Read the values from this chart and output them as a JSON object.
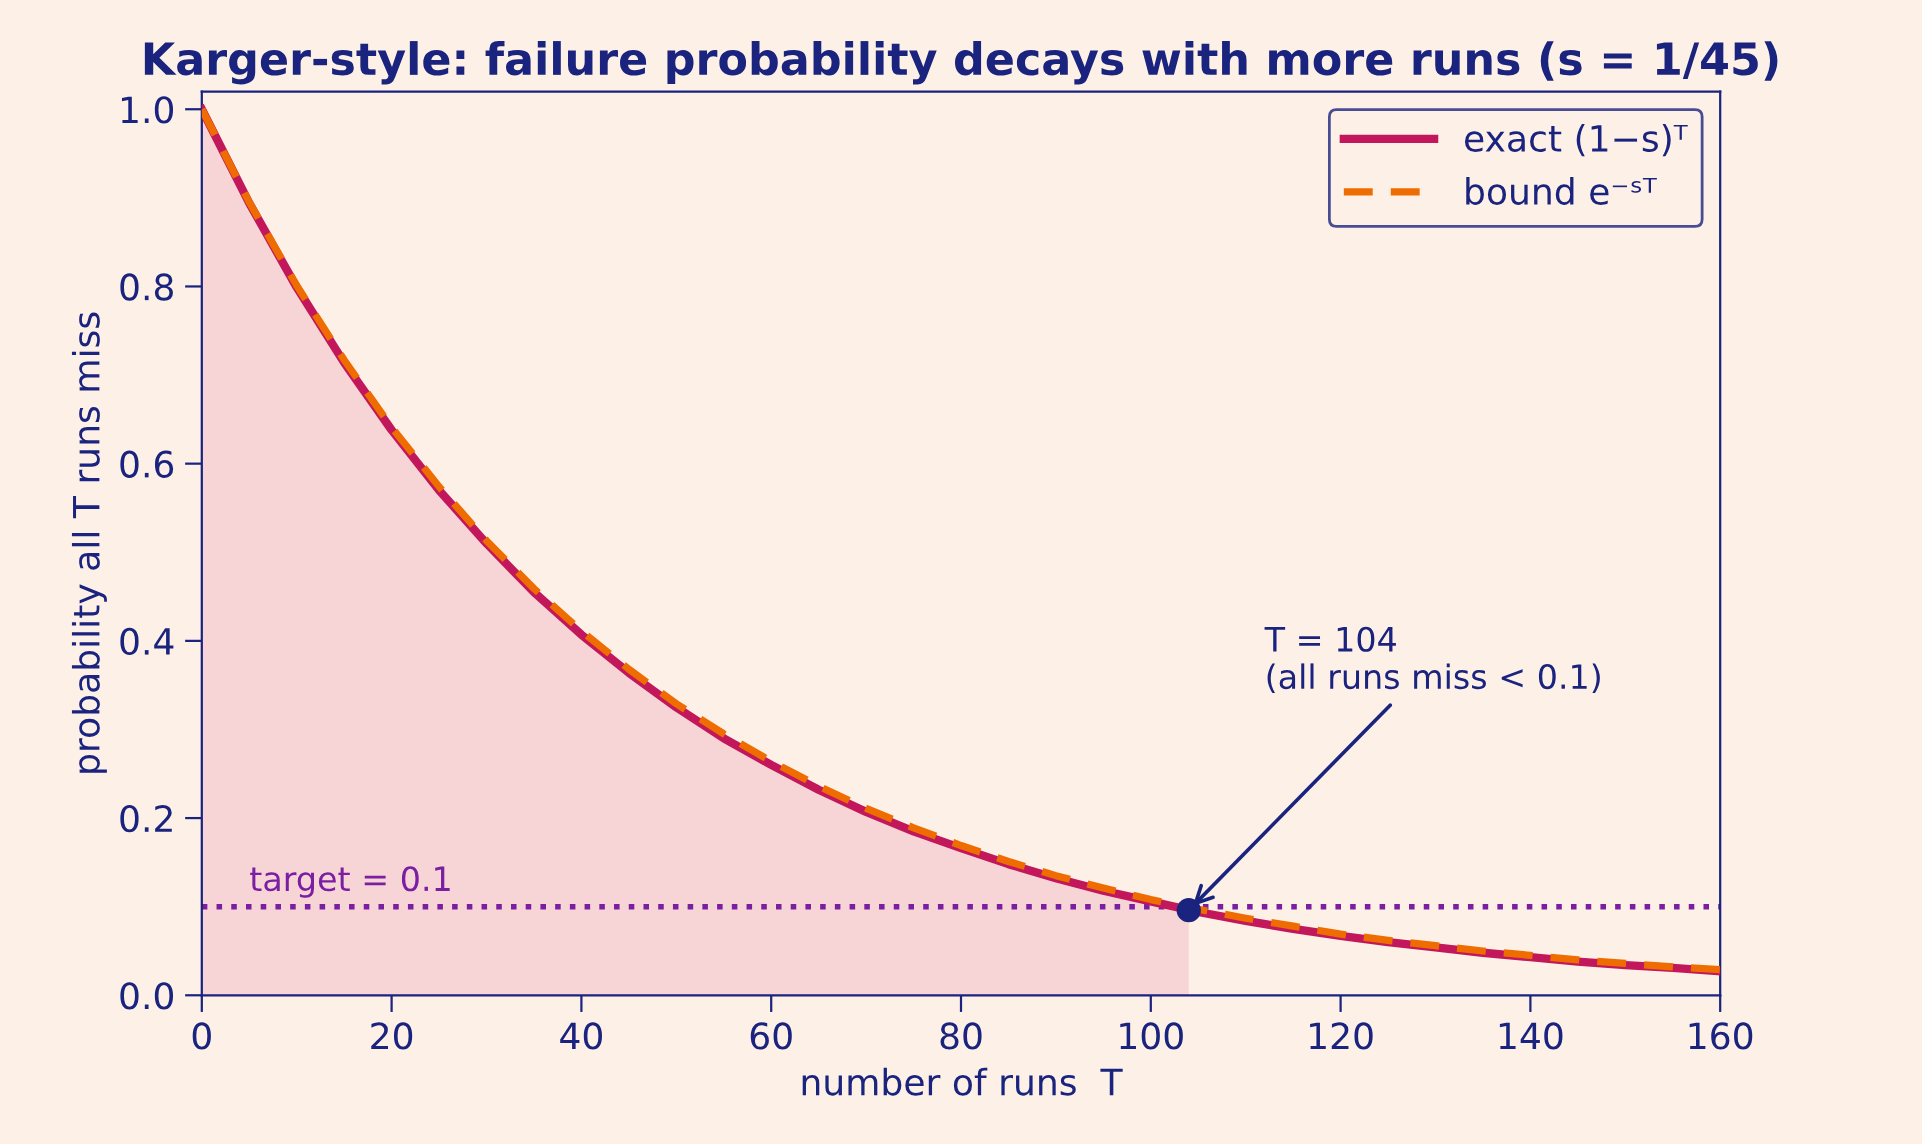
{
  "chart_data": {
    "type": "line",
    "title": "Karger-style: failure probability decays with more runs (s = 1/45)",
    "xlabel": "number of runs  T",
    "ylabel": "probability all T runs miss",
    "x": [
      0,
      5,
      10,
      15,
      20,
      25,
      30,
      35,
      40,
      45,
      50,
      55,
      60,
      65,
      70,
      75,
      80,
      85,
      90,
      95,
      100,
      105,
      110,
      115,
      120,
      125,
      130,
      135,
      140,
      145,
      150,
      155,
      160
    ],
    "series": [
      {
        "type": "area",
        "color": "#f7d5d7",
        "x": [
          0,
          5,
          10,
          15,
          20,
          25,
          30,
          35,
          40,
          45,
          50,
          55,
          60,
          65,
          70,
          75,
          80,
          85,
          90,
          95,
          100,
          104
        ],
        "values": [
          1.0,
          0.894,
          0.799,
          0.714,
          0.638,
          0.57,
          0.51,
          0.455,
          0.407,
          0.364,
          0.325,
          0.29,
          0.26,
          0.232,
          0.207,
          0.185,
          0.166,
          0.148,
          0.132,
          0.118,
          0.106,
          0.096
        ]
      },
      {
        "name": "exact (1−s)ᵀ",
        "color": "#c2185b",
        "line_style": "solid",
        "values": [
          1.0,
          0.894,
          0.799,
          0.714,
          0.638,
          0.57,
          0.51,
          0.455,
          0.407,
          0.364,
          0.325,
          0.29,
          0.26,
          0.232,
          0.207,
          0.185,
          0.166,
          0.148,
          0.132,
          0.118,
          0.106,
          0.094,
          0.084,
          0.075,
          0.067,
          0.06,
          0.054,
          0.048,
          0.043,
          0.038,
          0.034,
          0.031,
          0.027
        ]
      },
      {
        "name": "bound e⁻ˢᵀ",
        "color": "#ef6c00",
        "line_style": "dashed",
        "values": [
          1.0,
          0.895,
          0.801,
          0.717,
          0.641,
          0.574,
          0.513,
          0.459,
          0.411,
          0.368,
          0.329,
          0.295,
          0.264,
          0.236,
          0.211,
          0.189,
          0.169,
          0.151,
          0.135,
          0.121,
          0.108,
          0.097,
          0.087,
          0.078,
          0.069,
          0.062,
          0.056,
          0.05,
          0.045,
          0.04,
          0.036,
          0.032,
          0.029
        ]
      },
      {
        "type": "scatter",
        "marker": "circle",
        "color": "#1a237e",
        "x": [
          104
        ],
        "values": [
          0.096
        ]
      }
    ],
    "ref_lines": [
      {
        "axis": "y",
        "value": 0.1,
        "label": "target = 0.1",
        "color": "#7b1fa2",
        "line_style": "dotted"
      }
    ],
    "annotations": [
      {
        "text": "T = 104\n(all runs miss < 0.1)",
        "x": 104,
        "y": 0.096
      }
    ],
    "xlim": [
      0,
      160
    ],
    "xticks": [
      0,
      20,
      40,
      60,
      80,
      100,
      120,
      140,
      160
    ],
    "ylim": [
      0,
      1.02
    ],
    "yticks": [
      {
        "value": 0,
        "label": "0.0"
      },
      0.2,
      0.4,
      0.6,
      0.8,
      {
        "value": 1,
        "label": "1.0"
      }
    ],
    "grid": false,
    "legend": "top right"
  }
}
